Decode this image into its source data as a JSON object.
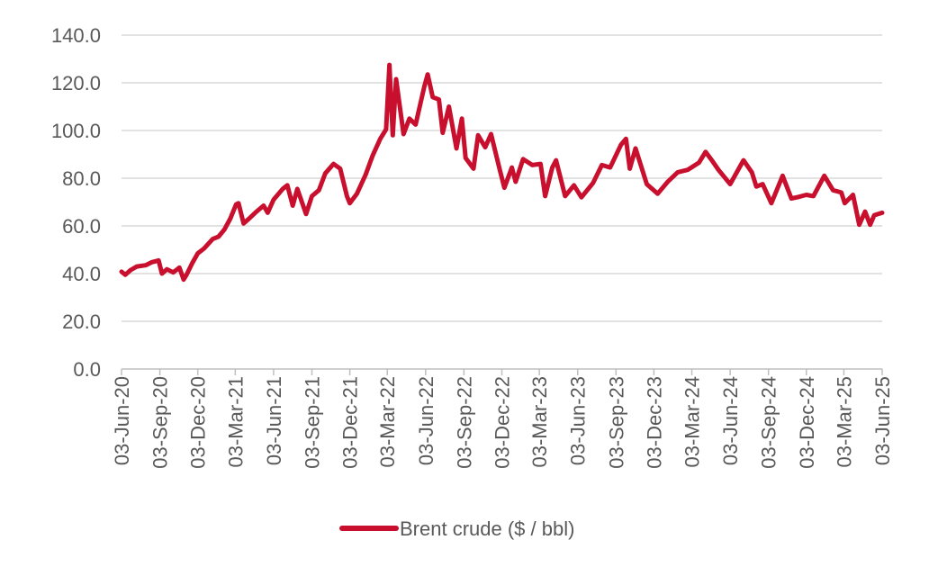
{
  "chart_data": {
    "type": "line",
    "title": "",
    "xlabel": "",
    "ylabel": "",
    "ylim": [
      0,
      140
    ],
    "yticks": [
      "0.0",
      "20.0",
      "40.0",
      "60.0",
      "80.0",
      "100.0",
      "120.0",
      "140.0"
    ],
    "ytick_values": [
      0,
      20,
      40,
      60,
      80,
      100,
      120,
      140
    ],
    "xlim": [
      "2020-06-03",
      "2025-06-03"
    ],
    "xticks": [
      {
        "label": "03-Jun-20",
        "date": "2020-06-03"
      },
      {
        "label": "03-Sep-20",
        "date": "2020-09-03"
      },
      {
        "label": "03-Dec-20",
        "date": "2020-12-03"
      },
      {
        "label": "03-Mar-21",
        "date": "2021-03-03"
      },
      {
        "label": "03-Jun-21",
        "date": "2021-06-03"
      },
      {
        "label": "03-Sep-21",
        "date": "2021-09-03"
      },
      {
        "label": "03-Dec-21",
        "date": "2021-12-03"
      },
      {
        "label": "03-Mar-22",
        "date": "2022-03-03"
      },
      {
        "label": "03-Jun-22",
        "date": "2022-06-03"
      },
      {
        "label": "03-Sep-22",
        "date": "2022-09-03"
      },
      {
        "label": "03-Dec-22",
        "date": "2022-12-03"
      },
      {
        "label": "03-Mar-23",
        "date": "2023-03-03"
      },
      {
        "label": "03-Jun-23",
        "date": "2023-06-03"
      },
      {
        "label": "03-Sep-23",
        "date": "2023-09-03"
      },
      {
        "label": "03-Dec-23",
        "date": "2023-12-03"
      },
      {
        "label": "03-Mar-24",
        "date": "2024-03-03"
      },
      {
        "label": "03-Jun-24",
        "date": "2024-06-03"
      },
      {
        "label": "03-Sep-24",
        "date": "2024-09-03"
      },
      {
        "label": "03-Dec-24",
        "date": "2024-12-03"
      },
      {
        "label": "03-Mar-25",
        "date": "2025-03-03"
      },
      {
        "label": "03-Jun-25",
        "date": "2025-06-03"
      }
    ],
    "grid": "horizontal",
    "legend": "bottom",
    "series": [
      {
        "name": "Brent crude ($ / bbl)",
        "color": "#C8102E",
        "points": [
          [
            "2020-06-03",
            40.8
          ],
          [
            "2020-06-12",
            39.5
          ],
          [
            "2020-06-25",
            41.5
          ],
          [
            "2020-07-10",
            43.0
          ],
          [
            "2020-07-31",
            43.5
          ],
          [
            "2020-08-15",
            44.8
          ],
          [
            "2020-08-31",
            45.5
          ],
          [
            "2020-09-08",
            40.0
          ],
          [
            "2020-09-20",
            41.8
          ],
          [
            "2020-10-05",
            40.5
          ],
          [
            "2020-10-20",
            42.5
          ],
          [
            "2020-10-30",
            37.5
          ],
          [
            "2020-11-06",
            39.5
          ],
          [
            "2020-11-20",
            44.5
          ],
          [
            "2020-12-03",
            48.5
          ],
          [
            "2020-12-18",
            50.5
          ],
          [
            "2021-01-08",
            54.5
          ],
          [
            "2021-01-22",
            55.5
          ],
          [
            "2021-02-05",
            58.5
          ],
          [
            "2021-02-19",
            63.0
          ],
          [
            "2021-03-05",
            69.0
          ],
          [
            "2021-03-11",
            69.5
          ],
          [
            "2021-03-23",
            61.0
          ],
          [
            "2021-04-05",
            63.0
          ],
          [
            "2021-04-20",
            65.5
          ],
          [
            "2021-05-10",
            68.5
          ],
          [
            "2021-05-20",
            65.5
          ],
          [
            "2021-06-03",
            71.0
          ],
          [
            "2021-06-25",
            75.5
          ],
          [
            "2021-07-06",
            77.0
          ],
          [
            "2021-07-19",
            68.5
          ],
          [
            "2021-07-30",
            75.5
          ],
          [
            "2021-08-20",
            65.0
          ],
          [
            "2021-09-03",
            72.5
          ],
          [
            "2021-09-20",
            75.0
          ],
          [
            "2021-10-05",
            82.0
          ],
          [
            "2021-10-25",
            86.0
          ],
          [
            "2021-11-10",
            84.0
          ],
          [
            "2021-11-26",
            72.5
          ],
          [
            "2021-12-03",
            69.5
          ],
          [
            "2021-12-20",
            73.5
          ],
          [
            "2022-01-10",
            81.5
          ],
          [
            "2022-01-27",
            89.5
          ],
          [
            "2022-02-14",
            96.5
          ],
          [
            "2022-02-28",
            100.5
          ],
          [
            "2022-03-08",
            127.5
          ],
          [
            "2022-03-16",
            98.0
          ],
          [
            "2022-03-24",
            121.5
          ],
          [
            "2022-04-11",
            98.5
          ],
          [
            "2022-04-25",
            105.0
          ],
          [
            "2022-05-10",
            102.5
          ],
          [
            "2022-05-31",
            118.5
          ],
          [
            "2022-06-08",
            123.5
          ],
          [
            "2022-06-20",
            114.0
          ],
          [
            "2022-07-05",
            113.0
          ],
          [
            "2022-07-14",
            99.0
          ],
          [
            "2022-07-29",
            110.0
          ],
          [
            "2022-08-16",
            92.5
          ],
          [
            "2022-08-29",
            105.0
          ],
          [
            "2022-09-07",
            88.5
          ],
          [
            "2022-09-26",
            84.0
          ],
          [
            "2022-10-07",
            98.0
          ],
          [
            "2022-10-24",
            93.0
          ],
          [
            "2022-11-07",
            98.5
          ],
          [
            "2022-11-28",
            83.5
          ],
          [
            "2022-12-09",
            76.0
          ],
          [
            "2022-12-27",
            84.5
          ],
          [
            "2023-01-05",
            78.5
          ],
          [
            "2023-01-23",
            88.0
          ],
          [
            "2023-02-14",
            85.5
          ],
          [
            "2023-03-06",
            86.0
          ],
          [
            "2023-03-17",
            72.5
          ],
          [
            "2023-04-03",
            84.5
          ],
          [
            "2023-04-12",
            87.5
          ],
          [
            "2023-05-04",
            72.5
          ],
          [
            "2023-05-25",
            77.0
          ],
          [
            "2023-06-12",
            72.0
          ],
          [
            "2023-07-10",
            78.0
          ],
          [
            "2023-07-31",
            85.5
          ],
          [
            "2023-08-20",
            84.5
          ],
          [
            "2023-09-15",
            94.0
          ],
          [
            "2023-09-27",
            96.5
          ],
          [
            "2023-10-06",
            84.0
          ],
          [
            "2023-10-20",
            92.5
          ],
          [
            "2023-11-16",
            77.5
          ],
          [
            "2023-12-12",
            73.5
          ],
          [
            "2024-01-05",
            78.5
          ],
          [
            "2024-01-29",
            82.5
          ],
          [
            "2024-02-22",
            83.5
          ],
          [
            "2024-03-20",
            86.5
          ],
          [
            "2024-04-05",
            91.0
          ],
          [
            "2024-04-22",
            87.0
          ],
          [
            "2024-05-06",
            83.5
          ],
          [
            "2024-06-03",
            77.5
          ],
          [
            "2024-07-05",
            87.5
          ],
          [
            "2024-07-25",
            82.5
          ],
          [
            "2024-08-05",
            76.5
          ],
          [
            "2024-08-20",
            77.5
          ],
          [
            "2024-09-10",
            69.5
          ],
          [
            "2024-10-07",
            81.0
          ],
          [
            "2024-10-28",
            71.5
          ],
          [
            "2024-11-11",
            72.0
          ],
          [
            "2024-12-03",
            73.0
          ],
          [
            "2024-12-20",
            72.5
          ],
          [
            "2025-01-15",
            81.0
          ],
          [
            "2025-02-05",
            75.0
          ],
          [
            "2025-02-25",
            74.0
          ],
          [
            "2025-03-05",
            69.5
          ],
          [
            "2025-03-25",
            73.0
          ],
          [
            "2025-04-09",
            60.5
          ],
          [
            "2025-04-23",
            66.0
          ],
          [
            "2025-05-05",
            60.5
          ],
          [
            "2025-05-15",
            64.5
          ],
          [
            "2025-06-03",
            65.5
          ]
        ]
      }
    ]
  }
}
